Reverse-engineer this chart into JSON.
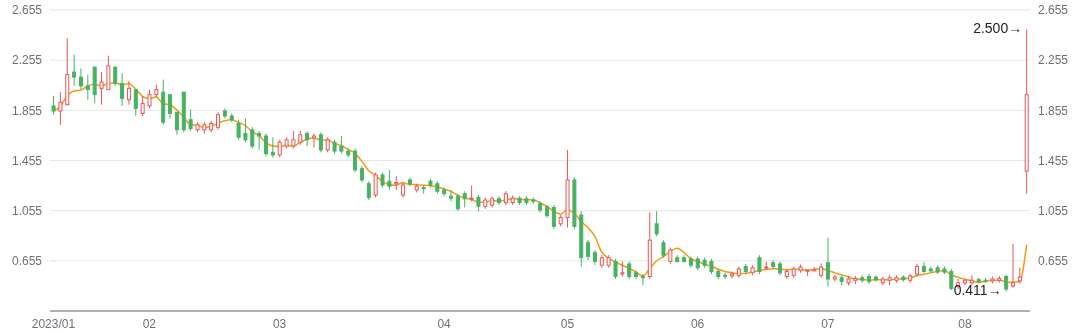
{
  "chart_data": {
    "type": "candlestick",
    "categories": [
      "2023/01",
      null,
      null,
      null,
      null,
      null,
      null,
      null,
      null,
      null,
      null,
      null,
      null,
      null,
      "02",
      null,
      null,
      null,
      null,
      null,
      null,
      null,
      null,
      null,
      null,
      null,
      null,
      null,
      null,
      null,
      null,
      null,
      null,
      "03",
      null,
      null,
      null,
      null,
      null,
      null,
      null,
      null,
      null,
      null,
      null,
      null,
      null,
      null,
      null,
      null,
      null,
      null,
      null,
      null,
      null,
      null,
      null,
      "04",
      null,
      null,
      null,
      null,
      null,
      null,
      null,
      null,
      null,
      null,
      null,
      null,
      null,
      null,
      null,
      null,
      null,
      "05",
      null,
      null,
      null,
      null,
      null,
      null,
      null,
      null,
      null,
      null,
      null,
      null,
      null,
      null,
      null,
      null,
      null,
      null,
      "06",
      null,
      null,
      null,
      null,
      null,
      null,
      null,
      null,
      null,
      null,
      null,
      null,
      null,
      null,
      null,
      null,
      null,
      null,
      "07",
      null,
      null,
      null,
      null,
      null,
      null,
      null,
      null,
      null,
      null,
      null,
      null,
      null,
      null,
      null,
      null,
      null,
      null,
      null,
      "08",
      null,
      null,
      null,
      null,
      null,
      null,
      null,
      null,
      null
    ],
    "ohlc": [
      [
        1.89,
        1.97,
        1.82,
        1.85
      ],
      [
        1.85,
        2.0,
        1.74,
        1.92
      ],
      [
        1.9,
        2.43,
        1.9,
        2.14
      ],
      [
        2.16,
        2.3,
        2.05,
        2.12
      ],
      [
        2.12,
        2.19,
        2.02,
        2.05
      ],
      [
        2.05,
        2.14,
        1.94,
        2.02
      ],
      [
        2.2,
        2.2,
        1.91,
        1.98
      ],
      [
        2.03,
        2.16,
        1.9,
        2.08
      ],
      [
        2.02,
        2.29,
        2.02,
        2.21
      ],
      [
        2.2,
        2.2,
        2.05,
        2.07
      ],
      [
        2.07,
        2.15,
        1.89,
        1.95
      ],
      [
        1.94,
        2.09,
        1.9,
        2.03
      ],
      [
        2.02,
        2.02,
        1.81,
        1.87
      ],
      [
        1.83,
        1.97,
        1.81,
        1.91
      ],
      [
        1.89,
        2.02,
        1.87,
        1.98
      ],
      [
        1.98,
        2.06,
        1.96,
        2.02
      ],
      [
        2.0,
        2.1,
        1.74,
        1.76
      ],
      [
        1.98,
        1.98,
        1.79,
        1.83
      ],
      [
        1.84,
        1.84,
        1.66,
        1.7
      ],
      [
        2.0,
        2.0,
        1.68,
        1.7
      ],
      [
        1.78,
        1.86,
        1.69,
        1.71
      ],
      [
        1.7,
        1.76,
        1.68,
        1.74
      ],
      [
        1.7,
        1.76,
        1.67,
        1.74
      ],
      [
        1.7,
        1.77,
        1.68,
        1.75
      ],
      [
        1.72,
        1.84,
        1.7,
        1.82
      ],
      [
        1.85,
        1.87,
        1.79,
        1.81
      ],
      [
        1.81,
        1.83,
        1.76,
        1.78
      ],
      [
        1.75,
        1.78,
        1.62,
        1.64
      ],
      [
        1.67,
        1.79,
        1.6,
        1.62
      ],
      [
        1.7,
        1.72,
        1.55,
        1.57
      ],
      [
        1.67,
        1.69,
        1.54,
        1.65
      ],
      [
        1.65,
        1.67,
        1.49,
        1.51
      ],
      [
        1.52,
        1.64,
        1.48,
        1.5
      ],
      [
        1.5,
        1.62,
        1.48,
        1.6
      ],
      [
        1.57,
        1.64,
        1.55,
        1.62
      ],
      [
        1.57,
        1.69,
        1.55,
        1.62
      ],
      [
        1.6,
        1.69,
        1.58,
        1.66
      ],
      [
        1.67,
        1.69,
        1.57,
        1.62
      ],
      [
        1.635,
        1.67,
        1.56,
        1.65
      ],
      [
        1.66,
        1.68,
        1.52,
        1.54
      ],
      [
        1.54,
        1.64,
        1.52,
        1.62
      ],
      [
        1.6,
        1.62,
        1.51,
        1.53
      ],
      [
        1.57,
        1.65,
        1.51,
        1.53
      ],
      [
        1.53,
        1.55,
        1.48,
        1.5
      ],
      [
        1.53,
        1.55,
        1.36,
        1.38
      ],
      [
        1.39,
        1.41,
        1.28,
        1.3
      ],
      [
        1.27,
        1.29,
        1.14,
        1.16
      ],
      [
        1.18,
        1.36,
        1.16,
        1.34
      ],
      [
        1.34,
        1.36,
        1.24,
        1.26
      ],
      [
        1.29,
        1.38,
        1.22,
        1.25
      ],
      [
        1.27,
        1.33,
        1.22,
        1.28
      ],
      [
        1.18,
        1.28,
        1.16,
        1.26
      ],
      [
        1.3,
        1.32,
        1.25,
        1.27
      ],
      [
        1.22,
        1.27,
        1.2,
        1.25
      ],
      [
        1.24,
        1.26,
        1.19,
        1.23
      ],
      [
        1.29,
        1.31,
        1.24,
        1.26
      ],
      [
        1.27,
        1.29,
        1.19,
        1.21
      ],
      [
        1.22,
        1.24,
        1.17,
        1.19
      ],
      [
        1.17,
        1.22,
        1.13,
        1.155
      ],
      [
        1.17,
        1.19,
        1.05,
        1.07
      ],
      [
        1.19,
        1.21,
        1.08,
        1.15
      ],
      [
        1.147,
        1.255,
        1.13,
        1.155
      ],
      [
        1.16,
        1.18,
        1.05,
        1.09
      ],
      [
        1.09,
        1.16,
        1.07,
        1.14
      ],
      [
        1.1,
        1.17,
        1.08,
        1.15
      ],
      [
        1.15,
        1.17,
        1.1,
        1.12
      ],
      [
        1.12,
        1.21,
        1.1,
        1.19
      ],
      [
        1.12,
        1.175,
        1.1,
        1.155
      ],
      [
        1.155,
        1.17,
        1.1,
        1.12
      ],
      [
        1.15,
        1.17,
        1.1,
        1.12
      ],
      [
        1.14,
        1.16,
        1.11,
        1.13
      ],
      [
        1.11,
        1.13,
        1.04,
        1.06
      ],
      [
        1.085,
        1.1,
        1.0,
        1.015
      ],
      [
        1.08,
        1.1,
        0.91,
        0.93
      ],
      [
        0.95,
        1.02,
        0.93,
        1.0
      ],
      [
        1.0,
        1.54,
        0.92,
        1.3
      ],
      [
        1.3,
        1.32,
        0.91,
        0.93
      ],
      [
        1.02,
        1.05,
        0.61,
        0.68
      ],
      [
        0.8,
        0.82,
        0.66,
        0.69
      ],
      [
        0.72,
        0.74,
        0.62,
        0.65
      ],
      [
        0.62,
        0.7,
        0.6,
        0.68
      ],
      [
        0.62,
        0.7,
        0.6,
        0.68
      ],
      [
        0.65,
        0.67,
        0.51,
        0.53
      ],
      [
        0.55,
        0.65,
        0.53,
        0.56
      ],
      [
        0.63,
        0.65,
        0.51,
        0.53
      ],
      [
        0.56,
        0.58,
        0.51,
        0.53
      ],
      [
        0.53,
        0.55,
        0.46,
        0.52
      ],
      [
        0.53,
        1.04,
        0.51,
        0.82
      ],
      [
        0.95,
        1.05,
        0.85,
        0.87
      ],
      [
        0.8,
        0.82,
        0.68,
        0.7
      ],
      [
        0.65,
        0.76,
        0.63,
        0.74
      ],
      [
        0.68,
        0.7,
        0.64,
        0.65
      ],
      [
        0.68,
        0.7,
        0.64,
        0.65
      ],
      [
        0.67,
        0.69,
        0.6,
        0.62
      ],
      [
        0.67,
        0.69,
        0.58,
        0.6
      ],
      [
        0.66,
        0.68,
        0.6,
        0.62
      ],
      [
        0.65,
        0.67,
        0.55,
        0.57
      ],
      [
        0.57,
        0.59,
        0.51,
        0.53
      ],
      [
        0.54,
        0.56,
        0.51,
        0.53
      ],
      [
        0.535,
        0.57,
        0.515,
        0.55
      ],
      [
        0.54,
        0.61,
        0.52,
        0.59
      ],
      [
        0.61,
        0.63,
        0.55,
        0.57
      ],
      [
        0.56,
        0.62,
        0.54,
        0.6
      ],
      [
        0.68,
        0.7,
        0.55,
        0.57
      ],
      [
        0.6,
        0.65,
        0.58,
        0.605
      ],
      [
        0.64,
        0.66,
        0.59,
        0.61
      ],
      [
        0.63,
        0.65,
        0.54,
        0.56
      ],
      [
        0.53,
        0.59,
        0.51,
        0.57
      ],
      [
        0.54,
        0.61,
        0.52,
        0.59
      ],
      [
        0.58,
        0.625,
        0.56,
        0.605
      ],
      [
        0.575,
        0.58,
        0.535,
        0.58
      ],
      [
        0.575,
        0.605,
        0.575,
        0.585
      ],
      [
        0.54,
        0.635,
        0.52,
        0.605
      ],
      [
        0.64,
        0.84,
        0.45,
        0.51
      ],
      [
        0.51,
        0.545,
        0.49,
        0.525
      ],
      [
        0.52,
        0.54,
        0.46,
        0.49
      ],
      [
        0.48,
        0.53,
        0.46,
        0.51
      ],
      [
        0.5,
        0.535,
        0.47,
        0.515
      ],
      [
        0.52,
        0.54,
        0.48,
        0.5
      ],
      [
        0.53,
        0.55,
        0.47,
        0.49
      ],
      [
        0.525,
        0.54,
        0.49,
        0.505
      ],
      [
        0.48,
        0.53,
        0.46,
        0.51
      ],
      [
        0.5,
        0.54,
        0.46,
        0.52
      ],
      [
        0.5,
        0.54,
        0.48,
        0.52
      ],
      [
        0.525,
        0.54,
        0.49,
        0.505
      ],
      [
        0.5,
        0.55,
        0.48,
        0.535
      ],
      [
        0.55,
        0.63,
        0.53,
        0.61
      ],
      [
        0.61,
        0.645,
        0.56,
        0.57
      ],
      [
        0.59,
        0.61,
        0.56,
        0.575
      ],
      [
        0.6,
        0.62,
        0.55,
        0.565
      ],
      [
        0.59,
        0.61,
        0.55,
        0.565
      ],
      [
        0.57,
        0.59,
        0.42,
        0.435
      ],
      [
        0.45,
        0.51,
        0.43,
        0.48
      ],
      [
        0.48,
        0.51,
        0.46,
        0.5
      ],
      [
        0.48,
        0.54,
        0.46,
        0.5
      ],
      [
        0.505,
        0.52,
        0.48,
        0.49
      ],
      [
        0.5,
        0.52,
        0.48,
        0.495
      ],
      [
        0.495,
        0.53,
        0.475,
        0.51
      ],
      [
        0.5,
        0.535,
        0.48,
        0.515
      ],
      [
        0.53,
        0.545,
        0.411,
        0.43
      ],
      [
        0.455,
        0.79,
        0.44,
        0.48
      ],
      [
        0.495,
        0.6,
        0.475,
        0.525
      ],
      [
        1.37,
        2.5,
        1.19,
        1.98
      ]
    ],
    "colors": [
      "#47b262",
      "#eb5454",
      "#eb5454",
      "#47b262",
      "#47b262",
      "#47b262",
      "#47b262",
      "#eb5454",
      "#eb5454",
      "#47b262",
      "#47b262",
      "#eb5454",
      "#47b262",
      "#eb5454",
      "#eb5454",
      "#eb5454",
      "#47b262",
      "#47b262",
      "#47b262",
      "#47b262",
      "#47b262",
      "#eb5454",
      "#eb5454",
      "#eb5454",
      "#eb5454",
      "#47b262",
      "#47b262",
      "#47b262",
      "#47b262",
      "#47b262",
      "#47b262",
      "#47b262",
      "#47b262",
      "#eb5454",
      "#eb5454",
      "#eb5454",
      "#eb5454",
      "#47b262",
      "#eb5454",
      "#47b262",
      "#eb5454",
      "#47b262",
      "#47b262",
      "#47b262",
      "#47b262",
      "#47b262",
      "#47b262",
      "#eb5454",
      "#47b262",
      "#47b262",
      "#eb5454",
      "#eb5454",
      "#47b262",
      "#eb5454",
      "#47b262",
      "#47b262",
      "#47b262",
      "#47b262",
      "#47b262",
      "#47b262",
      "#47b262",
      "#eb5454",
      "#47b262",
      "#eb5454",
      "#eb5454",
      "#47b262",
      "#eb5454",
      "#eb5454",
      "#47b262",
      "#47b262",
      "#47b262",
      "#47b262",
      "#47b262",
      "#47b262",
      "#eb5454",
      "#eb5454",
      "#47b262",
      "#47b262",
      "#47b262",
      "#47b262",
      "#eb5454",
      "#eb5454",
      "#47b262",
      "#eb5454",
      "#47b262",
      "#47b262",
      "#47b262",
      "#eb5454",
      "#47b262",
      "#47b262",
      "#eb5454",
      "#47b262",
      "#47b262",
      "#47b262",
      "#47b262",
      "#47b262",
      "#47b262",
      "#47b262",
      "#47b262",
      "#eb5454",
      "#eb5454",
      "#47b262",
      "#eb5454",
      "#47b262",
      "#eb5454",
      "#47b262",
      "#47b262",
      "#eb5454",
      "#eb5454",
      "#eb5454",
      "#eb5454",
      "#eb5454",
      "#eb5454",
      "#47b262",
      "#eb5454",
      "#47b262",
      "#eb5454",
      "#eb5454",
      "#47b262",
      "#47b262",
      "#47b262",
      "#eb5454",
      "#eb5454",
      "#eb5454",
      "#47b262",
      "#eb5454",
      "#eb5454",
      "#47b262",
      "#47b262",
      "#47b262",
      "#47b262",
      "#47b262",
      "#eb5454",
      "#eb5454",
      "#eb5454",
      "#47b262",
      "#47b262",
      "#eb5454",
      "#eb5454",
      "#47b262",
      "#eb5454",
      "#eb5454",
      "#eb5454"
    ],
    "series": [
      {
        "type": "line",
        "color": "#f39c12",
        "values": [
          1.85,
          1.885,
          1.97,
          2.01,
          2.016,
          2.05,
          2.062,
          2.05,
          2.068,
          2.072,
          2.058,
          2.068,
          2.026,
          1.966,
          1.948,
          1.962,
          1.908,
          1.9,
          1.858,
          1.802,
          1.74,
          1.736,
          1.718,
          1.728,
          1.752,
          1.772,
          1.78,
          1.76,
          1.734,
          1.684,
          1.652,
          1.598,
          1.57,
          1.566,
          1.576,
          1.57,
          1.6,
          1.624,
          1.634,
          1.618,
          1.618,
          1.592,
          1.574,
          1.544,
          1.512,
          1.448,
          1.374,
          1.336,
          1.288,
          1.262,
          1.258,
          1.278,
          1.264,
          1.262,
          1.258,
          1.254,
          1.244,
          1.228,
          1.209,
          1.177,
          1.155,
          1.144,
          1.124,
          1.121,
          1.137,
          1.131,
          1.138,
          1.151,
          1.147,
          1.141,
          1.143,
          1.117,
          1.089,
          1.051,
          1.027,
          1.061,
          1.035,
          0.968,
          0.92,
          0.85,
          0.726,
          0.676,
          0.646,
          0.62,
          0.596,
          0.566,
          0.534,
          0.592,
          0.654,
          0.688,
          0.73,
          0.756,
          0.722,
          0.672,
          0.652,
          0.628,
          0.612,
          0.588,
          0.57,
          0.56,
          0.554,
          0.554,
          0.568,
          0.576,
          0.587,
          0.591,
          0.589,
          0.583,
          0.587,
          0.587,
          0.581,
          0.586,
          0.593,
          0.577,
          0.561,
          0.543,
          0.528,
          0.51,
          0.508,
          0.501,
          0.504,
          0.504,
          0.505,
          0.509,
          0.512,
          0.518,
          0.538,
          0.548,
          0.559,
          0.571,
          0.577,
          0.542,
          0.524,
          0.509,
          0.496,
          0.481,
          0.493,
          0.499,
          0.502,
          0.486,
          0.484,
          0.49,
          0.784
        ]
      }
    ],
    "ylim": [
      0.255,
      2.655
    ],
    "yticks": [
      {
        "value": 0.255,
        "label": null
      },
      0.655,
      1.055,
      1.455,
      1.855,
      2.255,
      2.655
    ],
    "y2lim": [
      0.255,
      2.655
    ],
    "y2ticks": [
      0.655,
      1.055,
      1.455,
      1.855,
      2.255,
      2.655
    ],
    "grid": "y",
    "annotations": [
      "2.500→",
      "0.411→"
    ]
  }
}
